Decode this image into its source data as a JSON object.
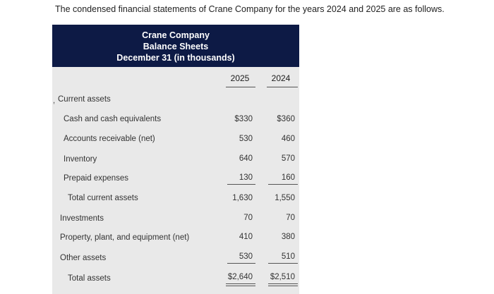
{
  "intro": "The condensed financial statements of Crane Company for the years 2024 and 2025 are as follows.",
  "header": {
    "line1": "Crane Company",
    "line2": "Balance Sheets",
    "line3": "December 31 (in thousands)"
  },
  "years": [
    "2025",
    "2024"
  ],
  "rows": [
    {
      "label": "Current assets",
      "v2025": "",
      "v2024": ""
    },
    {
      "label": "Cash and cash equivalents",
      "v2025": "$330",
      "v2024": "$360"
    },
    {
      "label": "Accounts receivable (net)",
      "v2025": "530",
      "v2024": "460"
    },
    {
      "label": "Inventory",
      "v2025": "640",
      "v2024": "570"
    },
    {
      "label": "Prepaid expenses",
      "v2025": "130",
      "v2024": "160"
    },
    {
      "label": "Total current assets",
      "v2025": "1,630",
      "v2024": "1,550"
    },
    {
      "label": "Investments",
      "v2025": "70",
      "v2024": "70"
    },
    {
      "label": "Property, plant, and equipment (net)",
      "v2025": "410",
      "v2024": "380"
    },
    {
      "label": "Other assets",
      "v2025": "530",
      "v2024": "510"
    },
    {
      "label": "Total assets",
      "v2025": "$2,640",
      "v2024": "$2,510"
    }
  ]
}
